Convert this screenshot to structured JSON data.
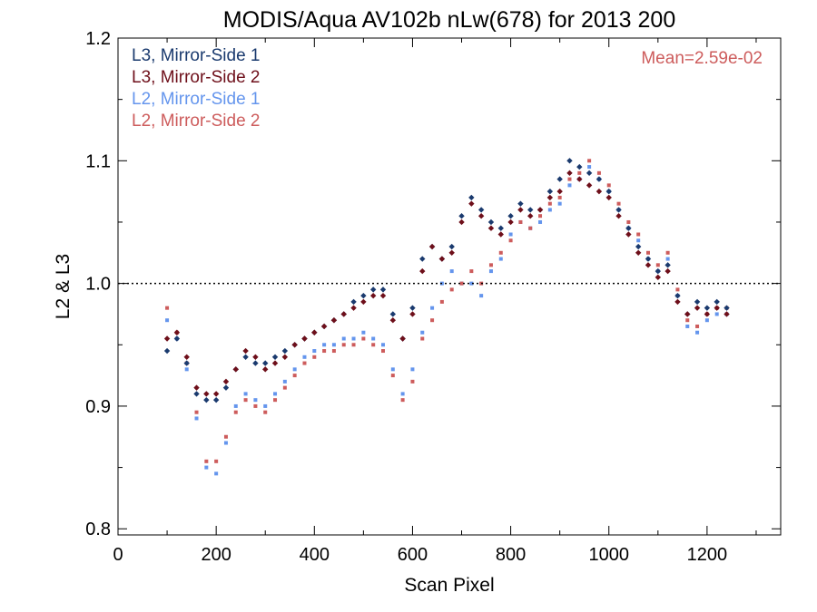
{
  "chart_data": {
    "type": "scatter",
    "title": "MODIS/Aqua AV102b nLw(678) for 2013 200",
    "xlabel": "Scan Pixel",
    "ylabel": "L2 & L3",
    "xlim": [
      0,
      1350
    ],
    "ylim": [
      0.795,
      1.2
    ],
    "xticks": [
      0,
      200,
      400,
      600,
      800,
      1000,
      1200
    ],
    "xtick_labels": [
      "0",
      "200",
      "400",
      "600",
      "800",
      "1000",
      "1200"
    ],
    "yticks": [
      0.8,
      0.9,
      1.0,
      1.1,
      1.2
    ],
    "ytick_labels": [
      "0.8",
      "0.9",
      "1.0",
      "1.1",
      "1.2"
    ],
    "reference_line": 1.0,
    "grid": false,
    "legend_position": "top-left",
    "annotation": {
      "text": "Mean=2.59e-02",
      "color": "#cd5c5c",
      "position": "top-right"
    },
    "series": [
      {
        "name": "L3, Mirror-Side 1",
        "color": "#1a3a6e",
        "marker": "diamond",
        "x": [
          100,
          120,
          140,
          160,
          180,
          200,
          220,
          240,
          260,
          280,
          300,
          320,
          340,
          360,
          380,
          400,
          420,
          440,
          460,
          480,
          500,
          520,
          540,
          560,
          580,
          600,
          620,
          640,
          660,
          680,
          700,
          720,
          740,
          760,
          780,
          800,
          820,
          840,
          860,
          880,
          900,
          920,
          940,
          960,
          980,
          1000,
          1020,
          1040,
          1060,
          1080,
          1100,
          1120,
          1140,
          1160,
          1180,
          1200,
          1220,
          1240
        ],
        "y": [
          0.945,
          0.955,
          0.935,
          0.91,
          0.905,
          0.905,
          0.915,
          0.93,
          0.94,
          0.935,
          0.935,
          0.94,
          0.945,
          0.95,
          0.955,
          0.96,
          0.965,
          0.97,
          0.975,
          0.985,
          0.99,
          0.995,
          0.995,
          0.975,
          0.955,
          0.98,
          1.02,
          1.03,
          1.02,
          1.03,
          1.055,
          1.07,
          1.06,
          1.05,
          1.045,
          1.055,
          1.065,
          1.06,
          1.06,
          1.075,
          1.085,
          1.1,
          1.095,
          1.09,
          1.085,
          1.075,
          1.06,
          1.045,
          1.03,
          1.02,
          1.01,
          1.015,
          0.99,
          0.975,
          0.985,
          0.98,
          0.985,
          0.98
        ]
      },
      {
        "name": "L3, Mirror-Side 2",
        "color": "#6e0f1a",
        "marker": "diamond",
        "x": [
          100,
          120,
          140,
          160,
          180,
          200,
          220,
          240,
          260,
          280,
          300,
          320,
          340,
          360,
          380,
          400,
          420,
          440,
          460,
          480,
          500,
          520,
          540,
          560,
          580,
          600,
          620,
          640,
          660,
          680,
          700,
          720,
          740,
          760,
          780,
          800,
          820,
          840,
          860,
          880,
          900,
          920,
          940,
          960,
          980,
          1000,
          1020,
          1040,
          1060,
          1080,
          1100,
          1120,
          1140,
          1160,
          1180,
          1200,
          1220,
          1240
        ],
        "y": [
          0.955,
          0.96,
          0.94,
          0.915,
          0.91,
          0.91,
          0.92,
          0.93,
          0.945,
          0.94,
          0.93,
          0.935,
          0.94,
          0.95,
          0.955,
          0.96,
          0.965,
          0.97,
          0.975,
          0.98,
          0.985,
          0.99,
          0.99,
          0.97,
          0.955,
          0.975,
          1.01,
          1.03,
          1.02,
          1.025,
          1.05,
          1.065,
          1.055,
          1.045,
          1.04,
          1.05,
          1.06,
          1.055,
          1.06,
          1.07,
          1.075,
          1.09,
          1.085,
          1.08,
          1.075,
          1.07,
          1.055,
          1.04,
          1.025,
          1.015,
          1.005,
          1.01,
          0.985,
          0.975,
          0.98,
          0.975,
          0.98,
          0.975
        ]
      },
      {
        "name": "L2, Mirror-Side 1",
        "color": "#6495ed",
        "marker": "square",
        "x": [
          100,
          120,
          140,
          160,
          180,
          200,
          220,
          240,
          260,
          280,
          300,
          320,
          340,
          360,
          380,
          400,
          420,
          440,
          460,
          480,
          500,
          520,
          540,
          560,
          580,
          600,
          620,
          640,
          660,
          680,
          700,
          720,
          740,
          760,
          780,
          800,
          820,
          840,
          860,
          880,
          900,
          920,
          940,
          960,
          980,
          1000,
          1020,
          1040,
          1060,
          1080,
          1100,
          1120,
          1140,
          1160,
          1180,
          1200,
          1220,
          1240
        ],
        "y": [
          0.97,
          0.955,
          0.93,
          0.89,
          0.85,
          0.845,
          0.87,
          0.9,
          0.91,
          0.905,
          0.9,
          0.91,
          0.92,
          0.93,
          0.94,
          0.945,
          0.95,
          0.95,
          0.955,
          0.955,
          0.96,
          0.955,
          0.95,
          0.93,
          0.91,
          0.93,
          0.96,
          0.98,
          1.0,
          1.01,
          1.0,
          1.0,
          0.99,
          1.01,
          1.02,
          1.04,
          1.05,
          1.045,
          1.05,
          1.06,
          1.065,
          1.08,
          1.085,
          1.095,
          1.085,
          1.075,
          1.06,
          1.045,
          1.035,
          1.02,
          1.01,
          1.02,
          0.99,
          0.965,
          0.96,
          0.97,
          0.975,
          0.975
        ]
      },
      {
        "name": "L2, Mirror-Side 2",
        "color": "#cd5c5c",
        "marker": "square",
        "x": [
          100,
          120,
          140,
          160,
          180,
          200,
          220,
          240,
          260,
          280,
          300,
          320,
          340,
          360,
          380,
          400,
          420,
          440,
          460,
          480,
          500,
          520,
          540,
          560,
          580,
          600,
          620,
          640,
          660,
          680,
          700,
          720,
          740,
          760,
          780,
          800,
          820,
          840,
          860,
          880,
          900,
          920,
          940,
          960,
          980,
          1000,
          1020,
          1040,
          1060,
          1080,
          1100,
          1120,
          1140,
          1160,
          1180,
          1200,
          1220,
          1240
        ],
        "y": [
          0.98,
          0.96,
          0.935,
          0.895,
          0.855,
          0.855,
          0.875,
          0.895,
          0.905,
          0.9,
          0.895,
          0.905,
          0.915,
          0.925,
          0.935,
          0.94,
          0.945,
          0.945,
          0.95,
          0.95,
          0.955,
          0.95,
          0.945,
          0.925,
          0.905,
          0.92,
          0.955,
          0.97,
          0.985,
          0.995,
          1.0,
          1.01,
          1.0,
          1.015,
          1.025,
          1.035,
          1.05,
          1.045,
          1.055,
          1.065,
          1.07,
          1.085,
          1.09,
          1.1,
          1.09,
          1.08,
          1.065,
          1.05,
          1.04,
          1.025,
          1.015,
          1.025,
          0.995,
          0.97,
          0.965,
          0.975,
          0.98,
          0.98
        ]
      }
    ]
  }
}
